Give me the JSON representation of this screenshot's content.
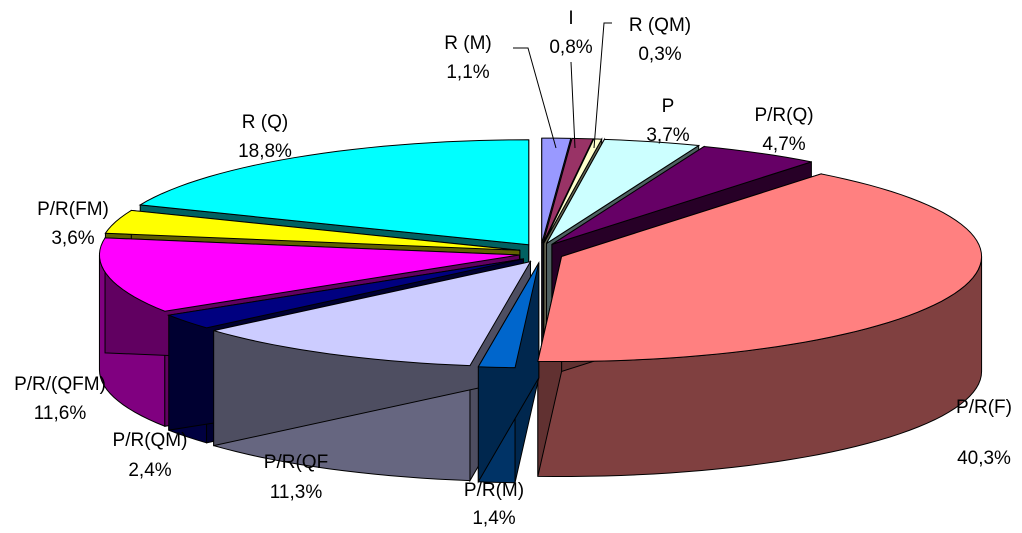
{
  "chart_data": {
    "type": "pie",
    "style": "3d-exploded",
    "slices": [
      {
        "label": "R (M)",
        "value_text": "1,1%",
        "value": 1.1,
        "color": "#9999ff"
      },
      {
        "label": "I",
        "value_text": "0,8%",
        "value": 0.8,
        "color": "#993366"
      },
      {
        "label": "R (QM)",
        "value_text": "0,3%",
        "value": 0.3,
        "color": "#ffffcc"
      },
      {
        "label": "P",
        "value_text": "3,7%",
        "value": 3.7,
        "color": "#ccffff"
      },
      {
        "label": "P/R(Q)",
        "value_text": "4,7%",
        "value": 4.7,
        "color": "#660066"
      },
      {
        "label": "P/R(F)",
        "value_text": "40,3%",
        "value": 40.3,
        "color": "#ff8080"
      },
      {
        "label": "P/R(M)",
        "value_text": "1,4%",
        "value": 1.4,
        "color": "#0066cc"
      },
      {
        "label": "P/R(QF",
        "value_text": "11,3%",
        "value": 11.3,
        "color": "#ccccff"
      },
      {
        "label": "P/R(QM)",
        "value_text": "2,4%",
        "value": 2.4,
        "color": "#000080"
      },
      {
        "label": "P/R/(QFM)",
        "value_text": "11,6%",
        "value": 11.6,
        "color": "#ff00ff"
      },
      {
        "label": "P/R(FM)",
        "value_text": "3,6%",
        "value": 3.6,
        "color": "#ffff00"
      },
      {
        "label": "R (Q)",
        "value_text": "18,8%",
        "value": 18.8,
        "color": "#00ffff"
      }
    ]
  }
}
